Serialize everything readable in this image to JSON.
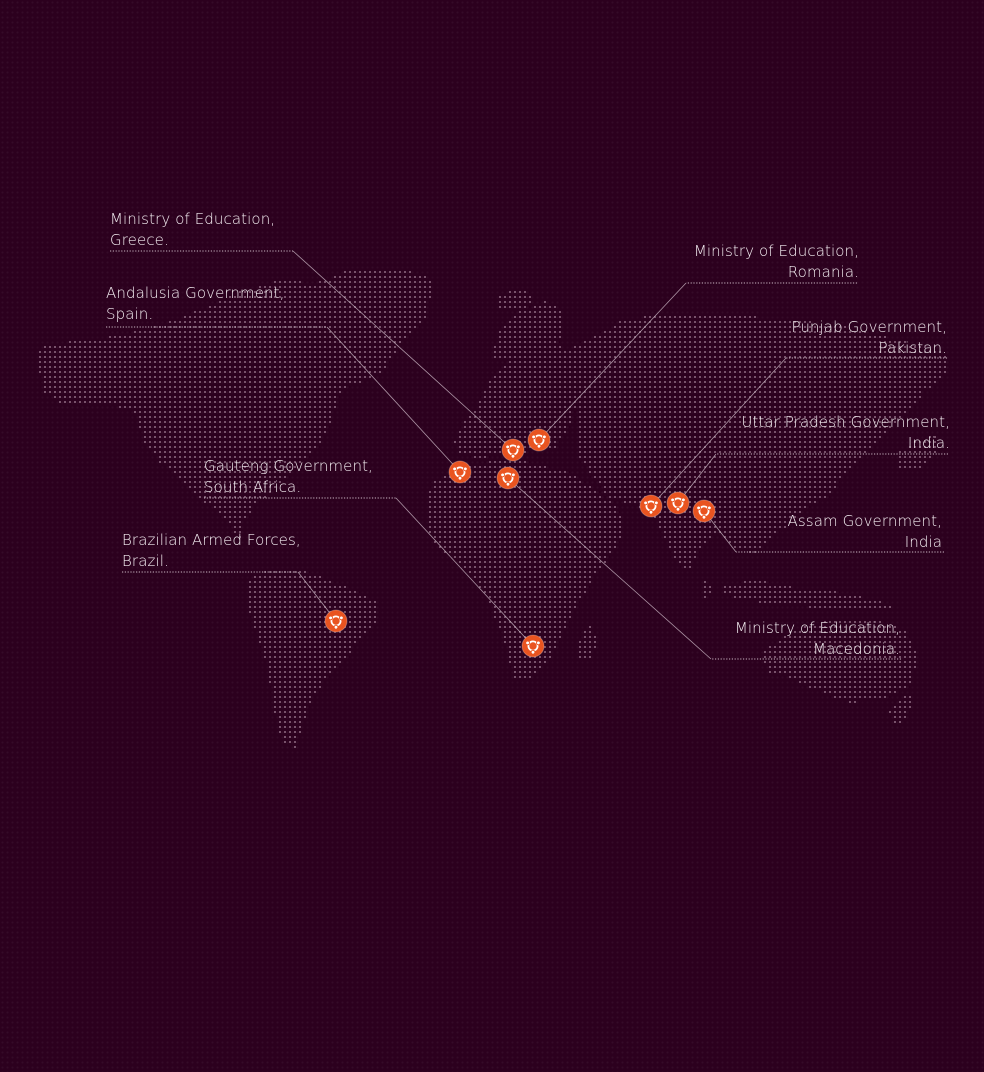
{
  "colors": {
    "background": "#2c001e",
    "land_dots": "#c9a9bd",
    "marker": "#e95420",
    "leader_line": "#d8c7d2"
  },
  "markers": [
    {
      "id": "greece",
      "icon": "ubuntu-logo-icon",
      "label": [
        "Ministry of Education,",
        "Greece."
      ]
    },
    {
      "id": "spain",
      "icon": "ubuntu-logo-icon",
      "label": [
        "Andalusia Government,",
        "Spain."
      ]
    },
    {
      "id": "south-africa",
      "icon": "ubuntu-logo-icon",
      "label": [
        "Gauteng Government,",
        "South Africa."
      ]
    },
    {
      "id": "brazil",
      "icon": "ubuntu-logo-icon",
      "label": [
        "Brazilian Armed Forces,",
        "Brazil."
      ]
    },
    {
      "id": "romania",
      "icon": "ubuntu-logo-icon",
      "label": [
        "Ministry of Education,",
        "Romania."
      ]
    },
    {
      "id": "pakistan",
      "icon": "ubuntu-logo-icon",
      "label": [
        "Punjab Government,",
        "Pakistan."
      ]
    },
    {
      "id": "uttar-pradesh",
      "icon": "ubuntu-logo-icon",
      "label": [
        "Uttar Pradesh Government,",
        "India."
      ]
    },
    {
      "id": "assam",
      "icon": "ubuntu-logo-icon",
      "label": [
        "Assam Government,",
        "India"
      ]
    },
    {
      "id": "macedonia",
      "icon": "ubuntu-logo-icon",
      "label": [
        "Ministry of Education,",
        "Macedonia."
      ]
    }
  ]
}
